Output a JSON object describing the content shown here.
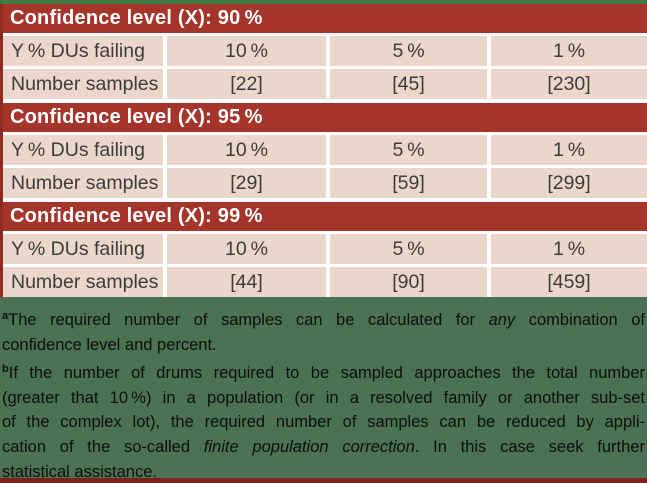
{
  "colors": {
    "top_strip_green": "#3e7c41",
    "header_red": "#a5342a",
    "left_border_red": "#8e2b20",
    "row_pink": "#ead6cb",
    "footer_green": "#4c7254",
    "bottom_strip_dark_red": "#7c241b",
    "header_text": "#ffffff",
    "cell_text": "#3d3c3c",
    "note_text": "#0e0e0e"
  },
  "table": {
    "blocks": [
      {
        "header": "Confidence level (X): 90 %",
        "rows": [
          {
            "label": "Y % DUs failing",
            "values": [
              "10 %",
              "5 %",
              "1 %"
            ]
          },
          {
            "label": "Number samples",
            "values": [
              "[22]",
              "[45]",
              "[230]"
            ]
          }
        ]
      },
      {
        "header": "Confidence level (X): 95 %",
        "rows": [
          {
            "label": "Y % DUs failing",
            "values": [
              "10 %",
              "5 %",
              "1 %"
            ]
          },
          {
            "label": "Number samples",
            "values": [
              "[29]",
              "[59]",
              "[299]"
            ]
          }
        ]
      },
      {
        "header": "Confidence level (X): 99 %",
        "rows": [
          {
            "label": "Y % DUs failing",
            "values": [
              "10 %",
              "5 %",
              "1 %"
            ]
          },
          {
            "label": "Number samples",
            "values": [
              "[44]",
              "[90]",
              "[459]"
            ]
          }
        ]
      }
    ]
  },
  "notes": {
    "l1": {
      "sup": "a",
      "t1": "The required number of samples can be calculated for ",
      "it": "any",
      "t2": " combination of"
    },
    "l2": {
      "t1": "confidence level and percent."
    },
    "l3": {
      "sup": "b",
      "t1": "If the number of drums required to be sampled approaches the total number"
    },
    "l4": {
      "t1": "(greater that 10 %) in a population (or in a resolved family or another sub-set"
    },
    "l5": {
      "t1": "of the complex lot), the required number of samples can be reduced by appli-"
    },
    "l6": {
      "t1": "cation of the so-called ",
      "it": "finite population correction",
      "t2": ". In this case seek further"
    },
    "l7": {
      "t1": "statistical assistance."
    }
  }
}
